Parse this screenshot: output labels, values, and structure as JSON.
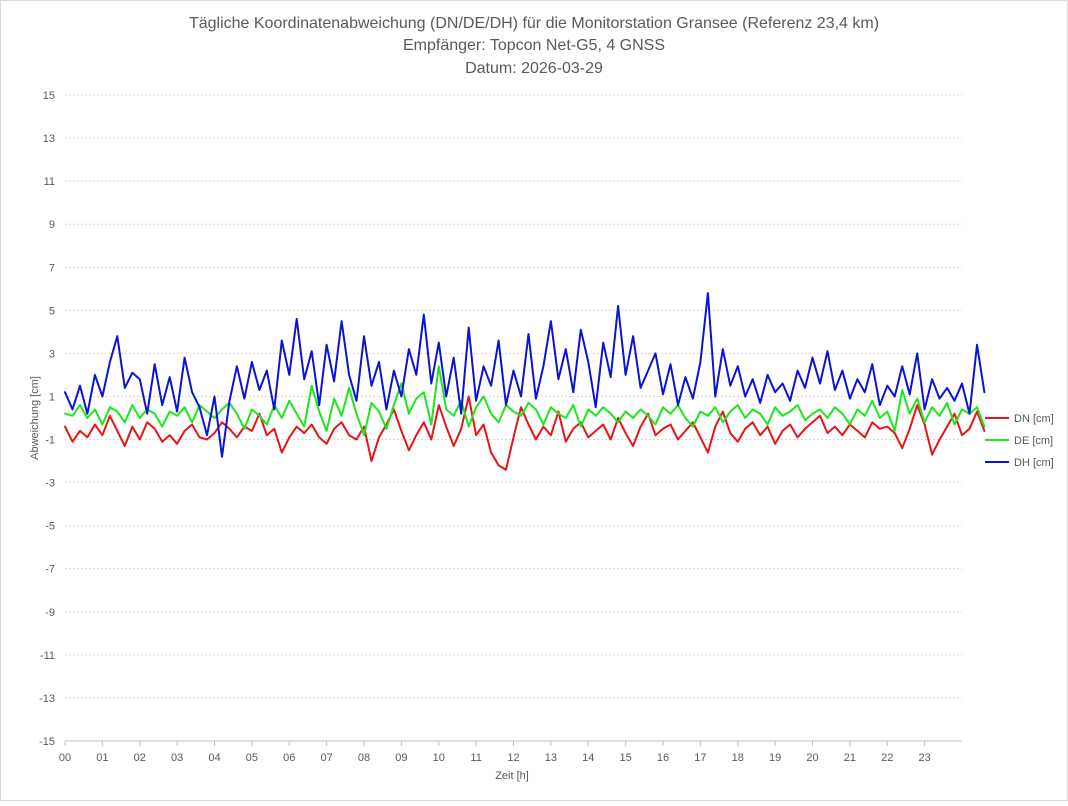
{
  "chart_data": {
    "type": "line",
    "title": [
      "Tägliche Koordinatenabweichung (DN/DE/DH) für die Monitorstation Gransee (Referenz 23,4 km)",
      "Empfänger: Topcon Net-G5, 4 GNSS",
      "Datum: 2026-03-29"
    ],
    "xlabel": "Zeit [h]",
    "ylabel": "Abweichung [cm]",
    "xlim": [
      0,
      24
    ],
    "ylim": [
      -15,
      15
    ],
    "x_ticks": [
      "00",
      "01",
      "02",
      "03",
      "04",
      "05",
      "06",
      "07",
      "08",
      "09",
      "10",
      "11",
      "12",
      "13",
      "14",
      "15",
      "16",
      "17",
      "18",
      "19",
      "20",
      "21",
      "22",
      "23"
    ],
    "y_ticks": [
      15,
      13,
      11,
      9,
      7,
      5,
      3,
      1,
      -1,
      -3,
      -5,
      -7,
      -9,
      -11,
      -13,
      -15
    ],
    "grid": true,
    "legend_position": "right",
    "sample_interval_hours": 0.2,
    "series": [
      {
        "name": "DN [cm]",
        "color": "#e8141a",
        "values": [
          -0.4,
          -1.1,
          -0.6,
          -0.9,
          -0.3,
          -0.8,
          0.1,
          -0.6,
          -1.3,
          -0.4,
          -1.0,
          -0.2,
          -0.5,
          -1.1,
          -0.8,
          -1.2,
          -0.6,
          -0.3,
          -0.9,
          -1.0,
          -0.7,
          -0.2,
          -0.5,
          -0.9,
          -0.4,
          -0.6,
          0.2,
          -0.8,
          -0.5,
          -1.6,
          -0.9,
          -0.4,
          -0.7,
          -0.3,
          -0.9,
          -1.2,
          -0.5,
          -0.2,
          -0.8,
          -1.0,
          -0.4,
          -2.0,
          -0.9,
          -0.3,
          0.4,
          -0.6,
          -1.5,
          -0.8,
          -0.2,
          -1.0,
          0.6,
          -0.4,
          -1.3,
          -0.5,
          1.0,
          -0.8,
          -0.3,
          -1.6,
          -2.2,
          -2.4,
          -0.9,
          0.5,
          -0.3,
          -1.0,
          -0.4,
          -0.8,
          0.3,
          -1.1,
          -0.5,
          -0.2,
          -0.9,
          -0.6,
          -0.3,
          -1.0,
          0.0,
          -0.7,
          -1.3,
          -0.4,
          0.2,
          -0.8,
          -0.5,
          -0.3,
          -1.0,
          -0.6,
          -0.2,
          -0.9,
          -1.6,
          -0.4,
          0.3,
          -0.7,
          -1.1,
          -0.5,
          -0.2,
          -0.8,
          -0.4,
          -1.2,
          -0.6,
          -0.3,
          -0.9,
          -0.5,
          -0.2,
          0.1,
          -0.7,
          -0.4,
          -0.8,
          -0.3,
          -0.6,
          -0.9,
          -0.2,
          -0.5,
          -0.4,
          -0.7,
          -1.4,
          -0.5,
          0.6,
          -0.3,
          -1.7,
          -1.0,
          -0.4,
          0.2,
          -0.8,
          -0.5,
          0.3,
          -0.6
        ]
      },
      {
        "name": "DE [cm]",
        "color": "#1ee61e",
        "values": [
          0.2,
          0.1,
          0.6,
          0.0,
          0.4,
          -0.3,
          0.5,
          0.3,
          -0.2,
          0.6,
          0.0,
          0.4,
          0.2,
          -0.4,
          0.3,
          0.1,
          0.5,
          -0.2,
          0.6,
          0.3,
          0.0,
          0.4,
          0.7,
          0.2,
          -0.5,
          0.4,
          0.1,
          -0.3,
          0.6,
          0.0,
          0.8,
          0.2,
          -0.4,
          1.5,
          0.3,
          -0.6,
          0.9,
          0.1,
          1.4,
          0.2,
          -0.8,
          0.7,
          0.3,
          -0.5,
          0.6,
          1.6,
          0.2,
          0.9,
          1.2,
          -0.3,
          2.4,
          0.4,
          0.1,
          0.8,
          -0.4,
          0.5,
          1.0,
          0.2,
          -0.2,
          0.6,
          0.3,
          0.1,
          0.7,
          0.4,
          -0.3,
          0.5,
          0.2,
          0.0,
          0.6,
          -0.4,
          0.4,
          0.1,
          0.5,
          0.2,
          -0.2,
          0.3,
          0.0,
          0.4,
          0.1,
          -0.3,
          0.5,
          0.2,
          0.6,
          0.0,
          -0.4,
          0.3,
          0.1,
          0.5,
          -0.2,
          0.3,
          0.6,
          0.0,
          0.4,
          0.2,
          -0.3,
          0.5,
          0.1,
          0.3,
          0.6,
          -0.1,
          0.2,
          0.4,
          0.0,
          0.5,
          0.2,
          -0.3,
          0.4,
          0.1,
          0.8,
          0.0,
          0.3,
          -0.6,
          1.3,
          0.2,
          0.9,
          -0.2,
          0.5,
          0.1,
          0.7,
          -0.3,
          0.4,
          0.2,
          0.5,
          -0.4
        ]
      },
      {
        "name": "DH [cm]",
        "color": "#0a14d2",
        "values": [
          1.2,
          0.4,
          1.5,
          0.2,
          2.0,
          1.0,
          2.6,
          3.8,
          1.4,
          2.1,
          1.8,
          0.2,
          2.5,
          0.6,
          1.9,
          0.3,
          2.8,
          1.2,
          0.5,
          -0.8,
          1.0,
          -1.8,
          0.8,
          2.4,
          0.9,
          2.6,
          1.3,
          2.2,
          0.4,
          3.6,
          2.0,
          4.6,
          1.8,
          3.1,
          0.6,
          3.4,
          1.7,
          4.5,
          2.0,
          0.8,
          3.8,
          1.5,
          2.6,
          0.4,
          2.2,
          1.0,
          3.2,
          2.0,
          4.8,
          1.6,
          3.5,
          1.0,
          2.8,
          0.2,
          4.2,
          0.8,
          2.4,
          1.5,
          3.6,
          0.6,
          2.2,
          1.0,
          3.9,
          0.9,
          2.4,
          4.5,
          1.8,
          3.2,
          1.2,
          4.1,
          2.6,
          0.5,
          3.5,
          1.9,
          5.2,
          2.0,
          3.8,
          1.4,
          2.2,
          3.0,
          1.1,
          2.5,
          0.6,
          1.9,
          0.9,
          2.6,
          5.8,
          1.0,
          3.2,
          1.5,
          2.4,
          1.0,
          1.8,
          0.7,
          2.0,
          1.2,
          1.6,
          0.8,
          2.2,
          1.4,
          2.8,
          1.6,
          3.1,
          1.3,
          2.2,
          0.9,
          1.8,
          1.2,
          2.5,
          0.6,
          1.5,
          1.0,
          2.4,
          1.1,
          3.0,
          0.4,
          1.8,
          0.9,
          1.4,
          0.8,
          1.6,
          0.2,
          3.4,
          1.2
        ]
      }
    ]
  }
}
